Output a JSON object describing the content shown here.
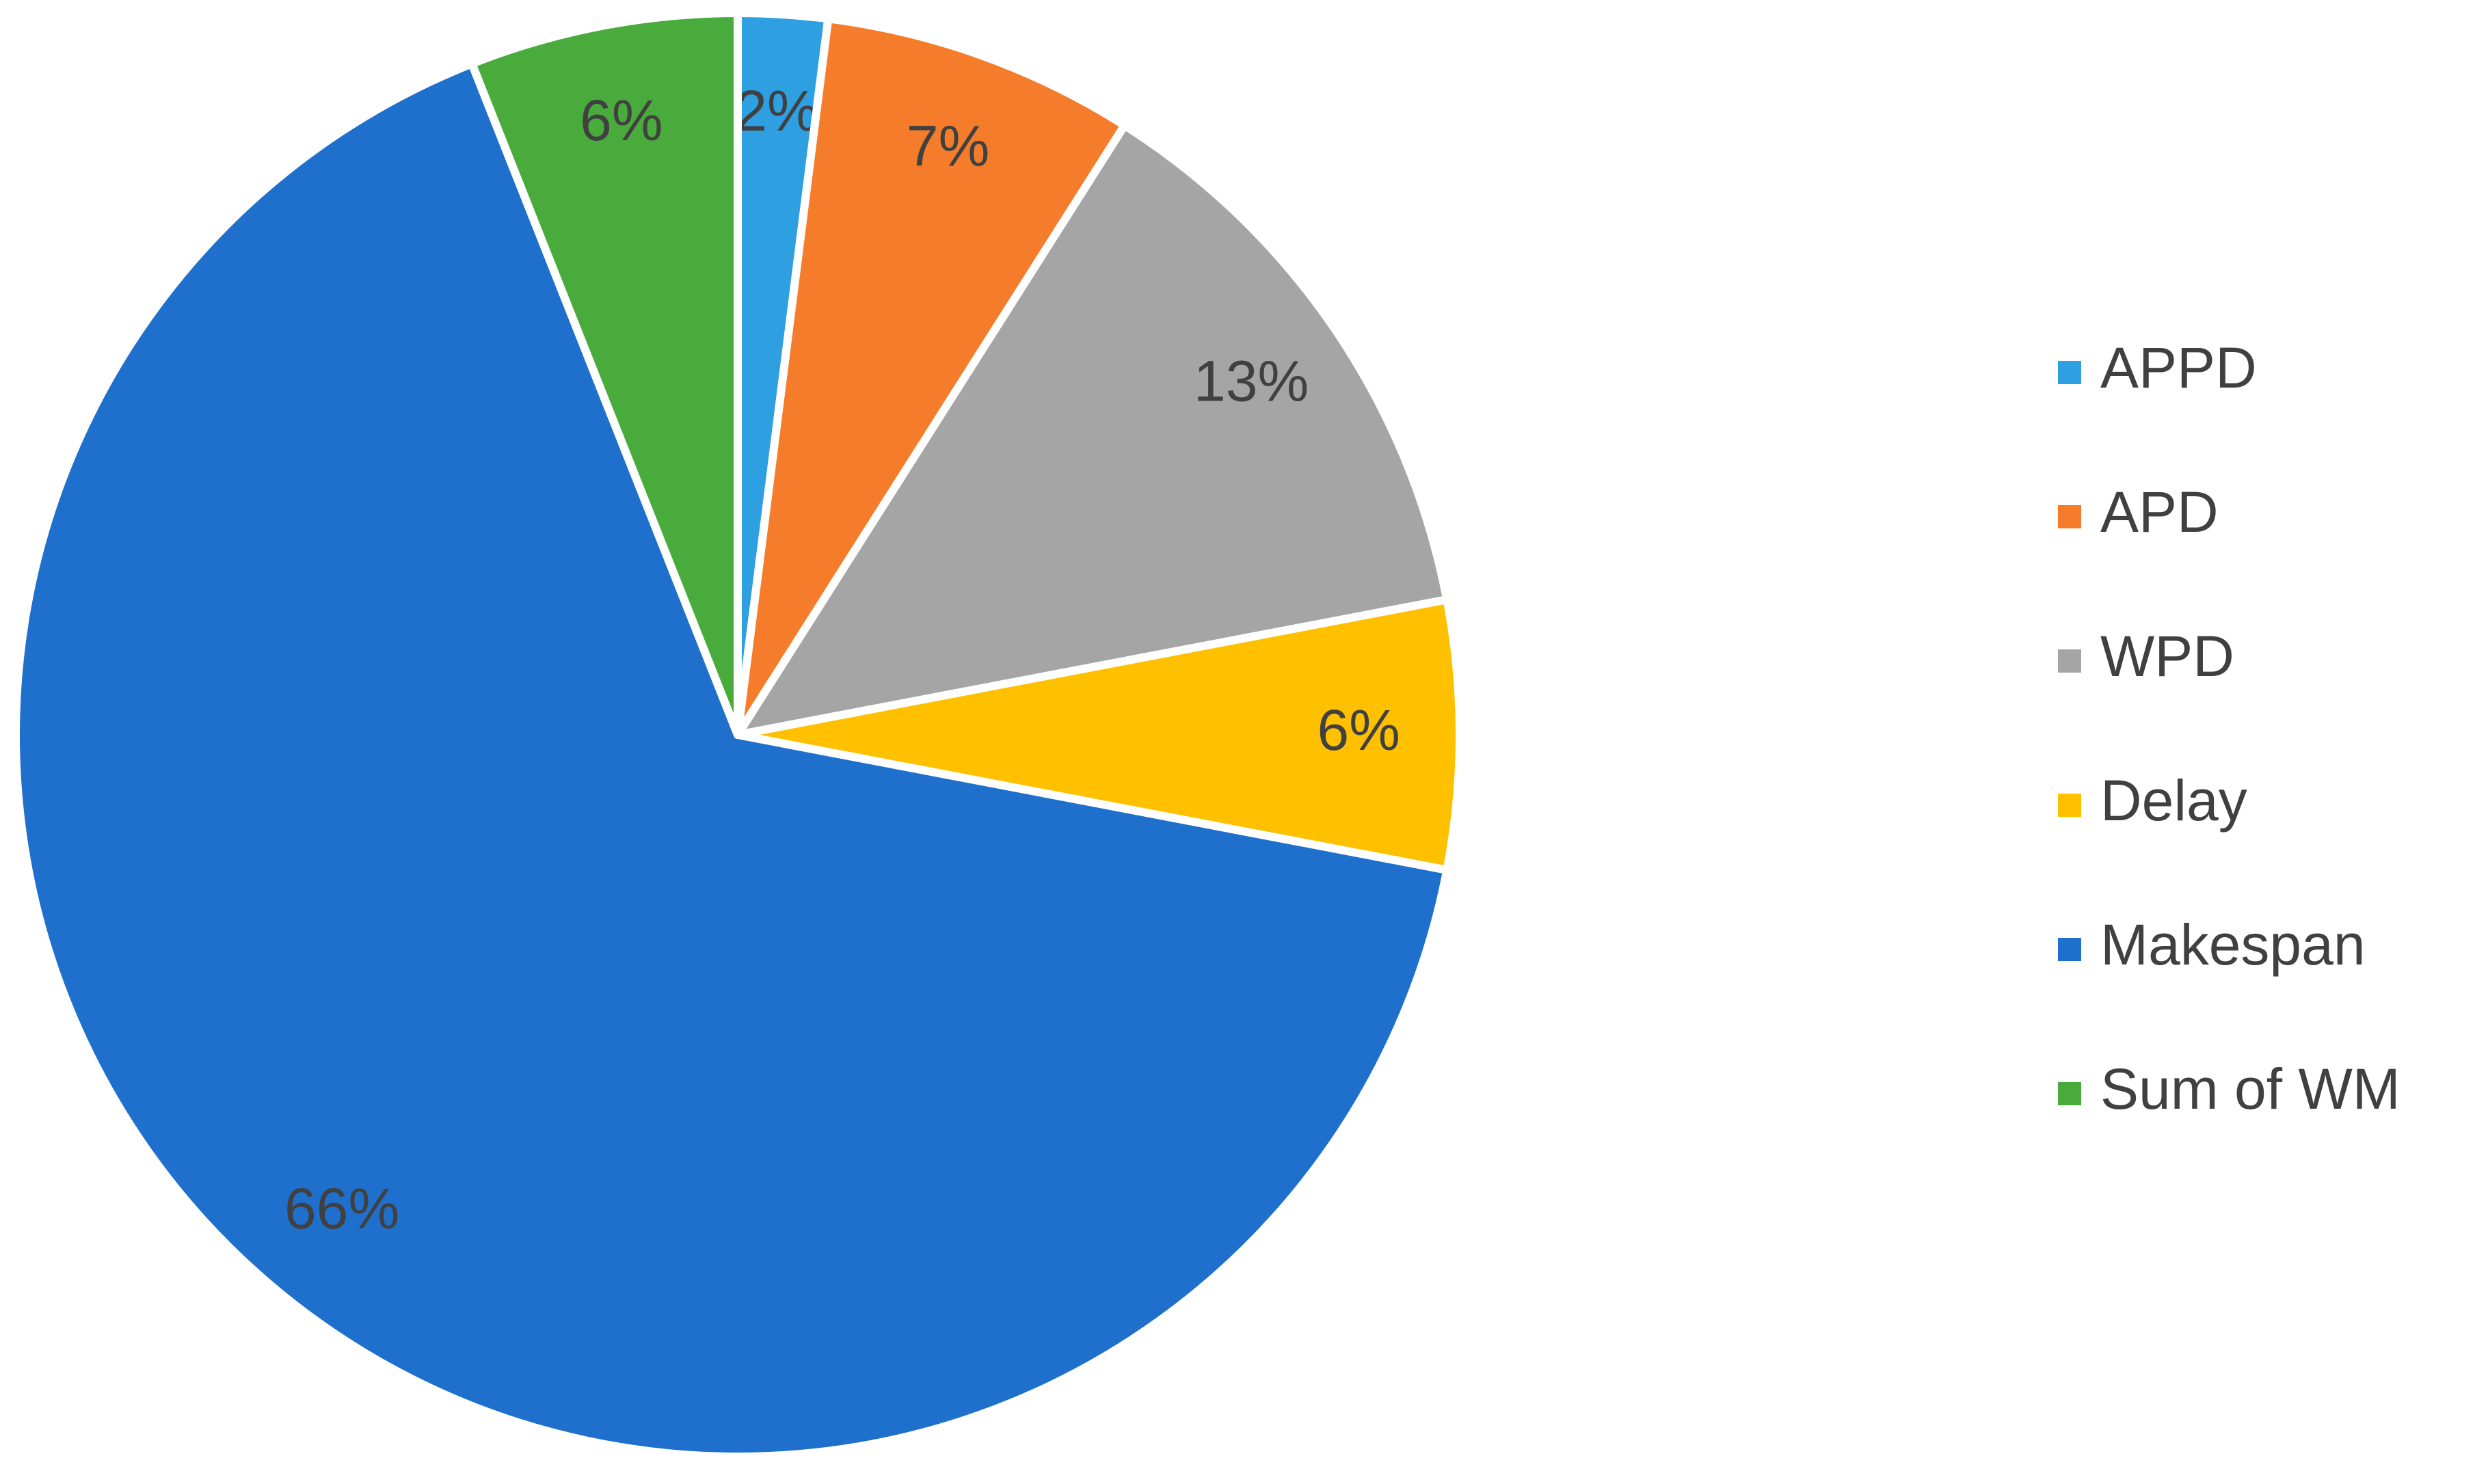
{
  "chart_data": {
    "type": "pie",
    "categories": [
      "APPD",
      "APD",
      "WPD",
      "Delay",
      "Makespan",
      "Sum of WM"
    ],
    "values": [
      2,
      7,
      13,
      6,
      66,
      6
    ],
    "value_labels": [
      "2%",
      "7%",
      "13%",
      "6%",
      "66%",
      "6%"
    ],
    "colors": [
      "#2e9fe0",
      "#f57c2a",
      "#a5a5a5",
      "#ffc000",
      "#1f70cc",
      "#4aab3d"
    ],
    "legend": "right"
  }
}
